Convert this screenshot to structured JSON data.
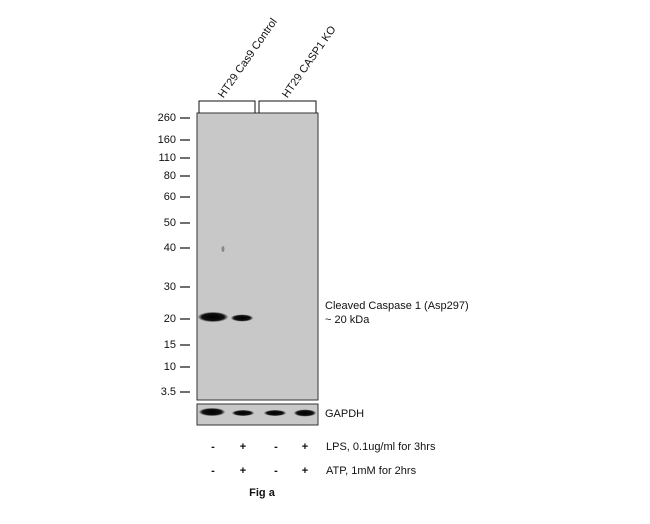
{
  "lanes": [
    "HT29 Cas9 Control",
    "HT29 CASP1 KO"
  ],
  "markers": [
    "260",
    "160",
    "110",
    "80",
    "60",
    "50",
    "40",
    "30",
    "20",
    "15",
    "10",
    "3.5"
  ],
  "band_label": [
    "Cleaved Caspase 1 (Asp297)",
    "~ 20 kDa"
  ],
  "loading_control": "GAPDH",
  "treatments": [
    {
      "label": "LPS, 0.1ug/ml for 3hrs",
      "signs": [
        "-",
        "+",
        "-",
        "+"
      ]
    },
    {
      "label": "ATP, 1mM for 2hrs",
      "signs": [
        "-",
        "+",
        "-",
        "+"
      ]
    }
  ],
  "caption": "Fig a"
}
